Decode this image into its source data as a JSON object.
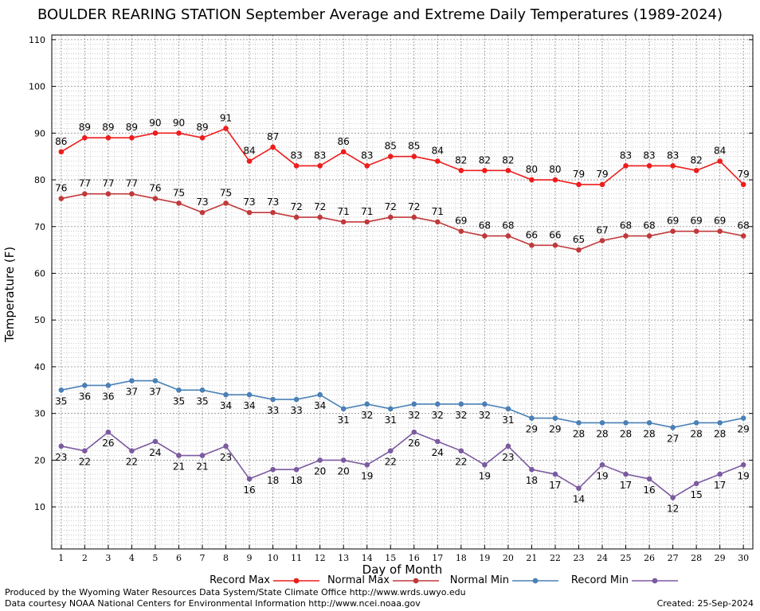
{
  "chart_data": {
    "type": "line",
    "title": "BOULDER REARING STATION September Average and Extreme Daily Temperatures (1989-2024)",
    "xlabel": "Day of Month",
    "ylabel": "Temperature (F)",
    "x": [
      1,
      2,
      3,
      4,
      5,
      6,
      7,
      8,
      9,
      10,
      11,
      12,
      13,
      14,
      15,
      16,
      17,
      18,
      19,
      20,
      21,
      22,
      23,
      24,
      25,
      26,
      27,
      28,
      29,
      30
    ],
    "xlim": [
      0.6,
      30.4
    ],
    "ylim": [
      1,
      111
    ],
    "yticks": [
      10,
      20,
      30,
      40,
      50,
      60,
      70,
      80,
      90,
      100,
      110
    ],
    "grid": true,
    "legend_position": "bottom",
    "series": [
      {
        "name": "Record Max",
        "color": "#ee1c1c",
        "label_position": "above",
        "values": [
          86,
          89,
          89,
          89,
          90,
          90,
          89,
          91,
          84,
          87,
          83,
          83,
          86,
          83,
          85,
          85,
          84,
          82,
          82,
          82,
          80,
          80,
          79,
          79,
          83,
          83,
          83,
          82,
          84,
          79
        ]
      },
      {
        "name": "Normal Max",
        "color": "#c0393b",
        "label_position": "above",
        "values": [
          76,
          77,
          77,
          77,
          76,
          75,
          73,
          75,
          73,
          73,
          72,
          72,
          71,
          71,
          72,
          72,
          71,
          69,
          68,
          68,
          66,
          66,
          65,
          67,
          68,
          68,
          69,
          69,
          69,
          68
        ]
      },
      {
        "name": "Normal Min",
        "color": "#4a80b6",
        "label_position": "below",
        "values": [
          35,
          36,
          36,
          37,
          37,
          35,
          35,
          34,
          34,
          33,
          33,
          34,
          31,
          32,
          31,
          32,
          32,
          32,
          32,
          31,
          29,
          29,
          28,
          28,
          28,
          28,
          27,
          28,
          28,
          29
        ]
      },
      {
        "name": "Record Min",
        "color": "#7b5aa0",
        "label_position": "below",
        "values": [
          23,
          22,
          26,
          22,
          24,
          21,
          21,
          23,
          16,
          18,
          18,
          20,
          20,
          19,
          22,
          26,
          24,
          22,
          19,
          23,
          18,
          17,
          14,
          19,
          17,
          16,
          12,
          15,
          17,
          19
        ]
      }
    ]
  },
  "footer": {
    "producer": "Produced by the Wyoming Water Resources Data System/State Climate Office http://www.wrds.uwyo.edu",
    "courtesy": "Data courtesy NOAA National Centers for Environmental Information http://www.ncei.noaa.gov",
    "created": "Created: 25-Sep-2024"
  }
}
